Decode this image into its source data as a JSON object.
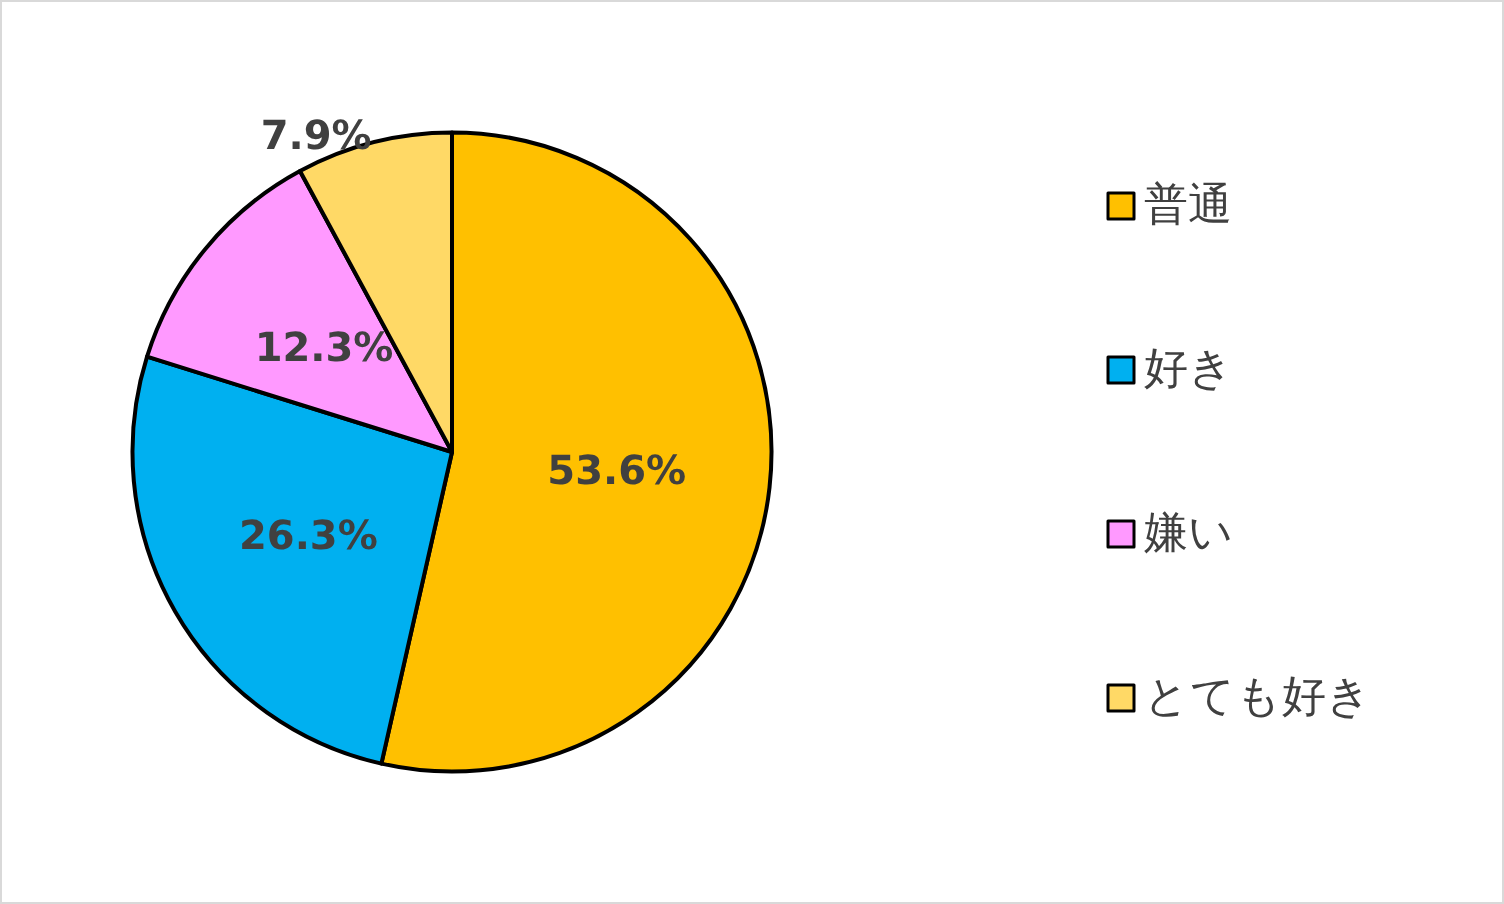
{
  "chart_data": {
    "type": "pie",
    "categories": [
      "普通",
      "好き",
      "嫌い",
      "とても好き"
    ],
    "values": [
      53.6,
      26.3,
      12.3,
      7.9
    ],
    "colors": [
      "#ffc000",
      "#00b0f0",
      "#ff99ff",
      "#ffd966"
    ],
    "value_labels": [
      "53.6%",
      "26.3%",
      "12.3%",
      "7.9%"
    ],
    "legend": "right"
  }
}
